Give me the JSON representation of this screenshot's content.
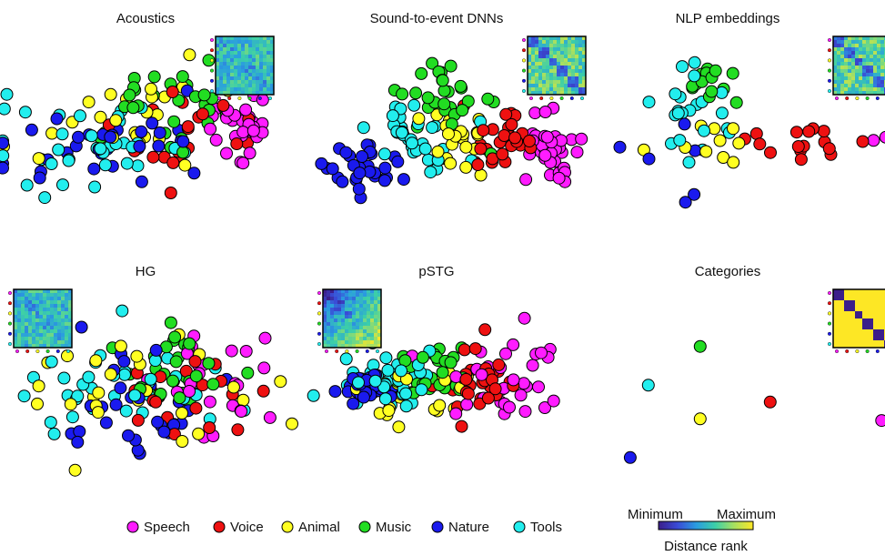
{
  "categories": [
    {
      "name": "Speech",
      "color": "#ff1cff"
    },
    {
      "name": "Voice",
      "color": "#ee1111"
    },
    {
      "name": "Animal",
      "color": "#ffff22"
    },
    {
      "name": "Music",
      "color": "#22dd22"
    },
    {
      "name": "Nature",
      "color": "#1a1aee"
    },
    {
      "name": "Tools",
      "color": "#22eeee"
    }
  ],
  "colorbar": {
    "min_label": "Minimum",
    "max_label": "Maximum",
    "title": "Distance rank",
    "colors": [
      "#3b1e8a",
      "#3a4bd6",
      "#2a9ce0",
      "#3ccfa8",
      "#a8e060",
      "#fde725"
    ]
  },
  "chart_data": [
    {
      "type": "scatter",
      "title": "Acoustics",
      "matrix": "noisy",
      "clusters": [
        {
          "category": "Speech",
          "cx": 0.84,
          "cy": 0.5,
          "sx": 0.05,
          "sy": 0.13,
          "n": 32,
          "seed": 11
        },
        {
          "category": "Voice",
          "cx": 0.6,
          "cy": 0.5,
          "sx": 0.14,
          "sy": 0.16,
          "n": 22,
          "seed": 12
        },
        {
          "category": "Animal",
          "cx": 0.45,
          "cy": 0.42,
          "sx": 0.2,
          "sy": 0.16,
          "n": 24,
          "seed": 13
        },
        {
          "category": "Music",
          "cx": 0.6,
          "cy": 0.35,
          "sx": 0.16,
          "sy": 0.14,
          "n": 30,
          "seed": 14
        },
        {
          "category": "Nature",
          "cx": 0.4,
          "cy": 0.6,
          "sx": 0.22,
          "sy": 0.14,
          "n": 32,
          "seed": 15
        },
        {
          "category": "Tools",
          "cx": 0.3,
          "cy": 0.5,
          "sx": 0.18,
          "sy": 0.14,
          "n": 36,
          "seed": 16
        }
      ]
    },
    {
      "type": "scatter",
      "title": "Sound-to-event DNNs",
      "matrix": "blocky",
      "clusters": [
        {
          "category": "Speech",
          "cx": 0.9,
          "cy": 0.58,
          "sx": 0.05,
          "sy": 0.1,
          "n": 34,
          "seed": 21
        },
        {
          "category": "Voice",
          "cx": 0.72,
          "cy": 0.55,
          "sx": 0.07,
          "sy": 0.1,
          "n": 28,
          "seed": 22
        },
        {
          "category": "Animal",
          "cx": 0.52,
          "cy": 0.5,
          "sx": 0.08,
          "sy": 0.14,
          "n": 22,
          "seed": 23
        },
        {
          "category": "Music",
          "cx": 0.5,
          "cy": 0.25,
          "sx": 0.07,
          "sy": 0.12,
          "n": 30,
          "seed": 24
        },
        {
          "category": "Nature",
          "cx": 0.18,
          "cy": 0.72,
          "sx": 0.09,
          "sy": 0.09,
          "n": 30,
          "seed": 25
        },
        {
          "category": "Tools",
          "cx": 0.36,
          "cy": 0.5,
          "sx": 0.08,
          "sy": 0.12,
          "n": 34,
          "seed": 26
        }
      ]
    },
    {
      "type": "scatter",
      "title": "NLP embeddings",
      "matrix": "blocky",
      "clusters": [
        {
          "category": "Speech",
          "cx": 0.98,
          "cy": 0.55,
          "sx": 0.02,
          "sy": 0.02,
          "n": 2,
          "seed": 31
        },
        {
          "category": "Voice",
          "cx": 0.7,
          "cy": 0.55,
          "sx": 0.12,
          "sy": 0.08,
          "n": 16,
          "seed": 32
        },
        {
          "category": "Animal",
          "cx": 0.35,
          "cy": 0.52,
          "sx": 0.12,
          "sy": 0.1,
          "n": 10,
          "seed": 33
        },
        {
          "category": "Music",
          "cx": 0.3,
          "cy": 0.22,
          "sx": 0.05,
          "sy": 0.09,
          "n": 14,
          "seed": 34
        },
        {
          "category": "Nature",
          "cx": 0.12,
          "cy": 0.65,
          "sx": 0.07,
          "sy": 0.15,
          "n": 6,
          "seed": 35
        },
        {
          "category": "Tools",
          "cx": 0.26,
          "cy": 0.4,
          "sx": 0.08,
          "sy": 0.15,
          "n": 22,
          "seed": 36
        }
      ]
    },
    {
      "type": "scatter",
      "title": "HG",
      "matrix": "noisy",
      "clusters": [
        {
          "category": "Speech",
          "cx": 0.78,
          "cy": 0.45,
          "sx": 0.12,
          "sy": 0.22,
          "n": 22,
          "seed": 41
        },
        {
          "category": "Voice",
          "cx": 0.65,
          "cy": 0.55,
          "sx": 0.1,
          "sy": 0.14,
          "n": 22,
          "seed": 42
        },
        {
          "category": "Animal",
          "cx": 0.45,
          "cy": 0.52,
          "sx": 0.25,
          "sy": 0.22,
          "n": 26,
          "seed": 43
        },
        {
          "category": "Music",
          "cx": 0.6,
          "cy": 0.35,
          "sx": 0.09,
          "sy": 0.14,
          "n": 30,
          "seed": 44
        },
        {
          "category": "Nature",
          "cx": 0.45,
          "cy": 0.55,
          "sx": 0.18,
          "sy": 0.2,
          "n": 30,
          "seed": 45
        },
        {
          "category": "Tools",
          "cx": 0.4,
          "cy": 0.45,
          "sx": 0.16,
          "sy": 0.14,
          "n": 38,
          "seed": 46
        }
      ]
    },
    {
      "type": "scatter",
      "title": "pSTG",
      "matrix": "gradient",
      "clusters": [
        {
          "category": "Speech",
          "cx": 0.75,
          "cy": 0.55,
          "sx": 0.11,
          "sy": 0.18,
          "n": 32,
          "seed": 51
        },
        {
          "category": "Voice",
          "cx": 0.62,
          "cy": 0.5,
          "sx": 0.08,
          "sy": 0.12,
          "n": 30,
          "seed": 52
        },
        {
          "category": "Animal",
          "cx": 0.38,
          "cy": 0.58,
          "sx": 0.12,
          "sy": 0.1,
          "n": 24,
          "seed": 53
        },
        {
          "category": "Music",
          "cx": 0.43,
          "cy": 0.42,
          "sx": 0.07,
          "sy": 0.1,
          "n": 26,
          "seed": 54
        },
        {
          "category": "Nature",
          "cx": 0.18,
          "cy": 0.6,
          "sx": 0.07,
          "sy": 0.08,
          "n": 28,
          "seed": 55
        },
        {
          "category": "Tools",
          "cx": 0.25,
          "cy": 0.52,
          "sx": 0.1,
          "sy": 0.12,
          "n": 38,
          "seed": 56
        }
      ]
    },
    {
      "type": "scatter",
      "title": "Categories",
      "matrix": "identity",
      "points": [
        {
          "category": "Music",
          "x": 0.28,
          "y": 0.22
        },
        {
          "category": "Tools",
          "x": 0.08,
          "y": 0.45
        },
        {
          "category": "Voice",
          "x": 0.55,
          "y": 0.55
        },
        {
          "category": "Animal",
          "x": 0.28,
          "y": 0.65
        },
        {
          "category": "Speech",
          "x": 0.98,
          "y": 0.66
        },
        {
          "category": "Nature",
          "x": 0.01,
          "y": 0.88
        }
      ]
    }
  ]
}
